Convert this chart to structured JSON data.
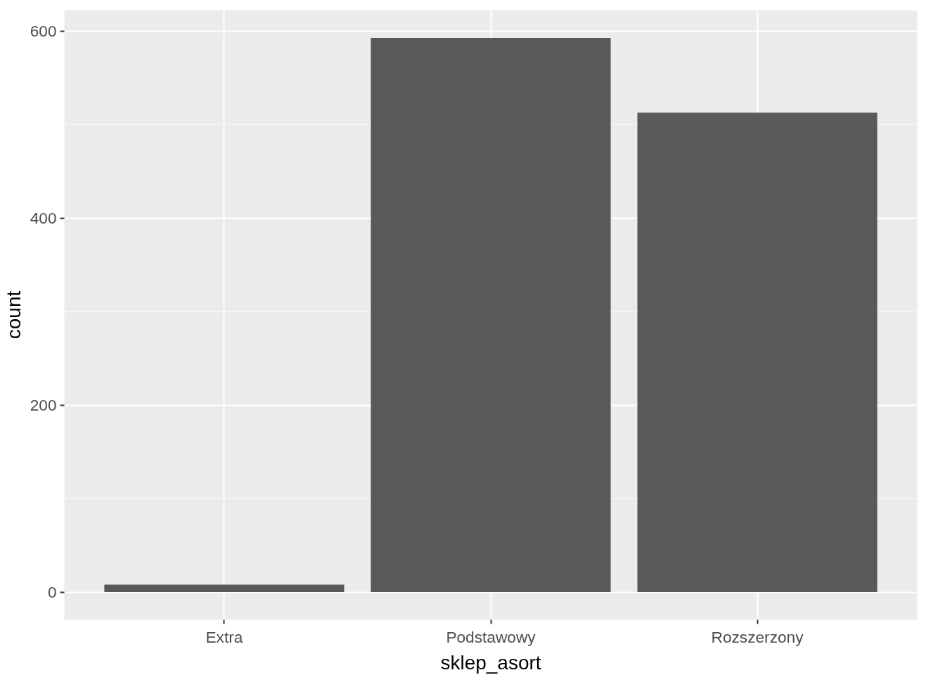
{
  "chart_data": {
    "type": "bar",
    "xlabel": "sklep_asort",
    "ylabel": "count",
    "categories": [
      "Extra",
      "Podstawowy",
      "Rozszerzony"
    ],
    "values": [
      8,
      593,
      513
    ],
    "color": "#595959",
    "ylim": [
      -29.65,
      622.65
    ],
    "yticks": [
      0,
      200,
      400,
      600
    ],
    "grid": true
  }
}
